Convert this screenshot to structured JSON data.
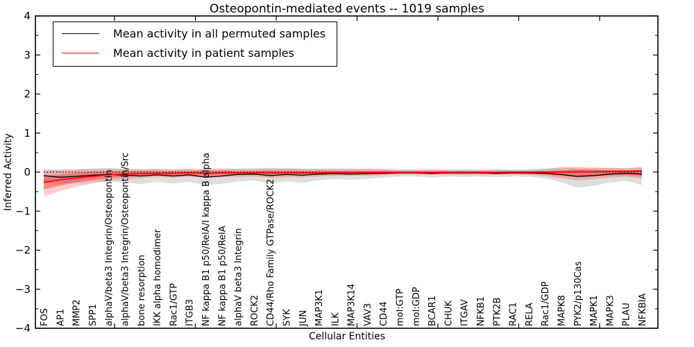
{
  "title": "Osteopontin-mediated events -- 1019 samples",
  "axes": {
    "xlabel": "Cellular Entities",
    "ylabel": "Inferred Activity",
    "y_tick_labels": [
      "4",
      "3",
      "2",
      "1",
      "0",
      "−1",
      "−2",
      "−3",
      "−4"
    ]
  },
  "legend": {
    "items": [
      {
        "label": "Mean activity in all permuted samples",
        "color": "#000000"
      },
      {
        "label": "Mean activity in patient samples",
        "color": "#ff0000"
      }
    ]
  },
  "chart_data": {
    "type": "line",
    "title": "Osteopontin-mediated events -- 1019 samples",
    "xlabel": "Cellular Entities",
    "ylabel": "Inferred Activity",
    "ylim": [
      -4,
      4
    ],
    "y_ticks": [
      4,
      3,
      2,
      1,
      0,
      -1,
      -2,
      -3,
      -4
    ],
    "grid": false,
    "legend_position": "upper left",
    "zero_line": 0,
    "categories": [
      "FOS",
      "AP1",
      "MMP2",
      "SPP1",
      "alphaV/beta3 Integrin/Osteopontin",
      "alphaV/beta3 Integrin/Osteopontin/Src",
      "bone resorption",
      "IKK alpha homodimer",
      "Rac1/GTP",
      "ITGB3",
      "NF kappa B1 p50/RelA/I kappa B alpha",
      "NF kappa B1 p50/RelA",
      "alphaV beta3 Integrin",
      "ROCK2",
      "CD44/Rho Family GTPase/ROCK2",
      "SYK",
      "JUN",
      "MAP3K1",
      "ILK",
      "MAP3K14",
      "VAV3",
      "CD44",
      "mol:GTP",
      "mol:GDP",
      "BCAR1",
      "CHUK",
      "ITGAV",
      "NFKB1",
      "PTK2B",
      "RAC1",
      "RELA",
      "Rac1/GDP",
      "MAPK8",
      "PYK2/p130Cas",
      "MAPK1",
      "MAPK3",
      "PLAU",
      "NFKBIA"
    ],
    "series": [
      {
        "name": "Mean activity in all permuted samples",
        "color": "#000000",
        "values": [
          -0.09,
          -0.13,
          -0.11,
          -0.08,
          -0.06,
          -0.08,
          -0.1,
          -0.07,
          -0.1,
          -0.07,
          -0.13,
          -0.1,
          -0.06,
          -0.05,
          -0.09,
          -0.06,
          -0.08,
          -0.05,
          -0.04,
          -0.05,
          -0.04,
          -0.03,
          -0.02,
          -0.02,
          -0.03,
          -0.02,
          -0.02,
          -0.02,
          -0.03,
          -0.02,
          -0.02,
          -0.03,
          -0.06,
          -0.11,
          -0.09,
          -0.05,
          -0.03,
          -0.05
        ],
        "band": {
          "color": "rgba(0,0,0,0.13)",
          "upper": [
            0.07,
            0.06,
            0.07,
            0.09,
            0.1,
            0.08,
            0.07,
            0.09,
            0.07,
            0.09,
            0.06,
            0.07,
            0.09,
            0.1,
            0.08,
            0.09,
            0.08,
            0.09,
            0.1,
            0.09,
            0.09,
            0.08,
            0.07,
            0.07,
            0.08,
            0.07,
            0.07,
            0.07,
            0.08,
            0.07,
            0.07,
            0.09,
            0.12,
            0.1,
            0.1,
            0.11,
            0.1,
            0.12
          ],
          "lower": [
            -0.26,
            -0.3,
            -0.29,
            -0.26,
            -0.24,
            -0.27,
            -0.3,
            -0.25,
            -0.29,
            -0.25,
            -0.33,
            -0.3,
            -0.24,
            -0.21,
            -0.29,
            -0.24,
            -0.27,
            -0.21,
            -0.18,
            -0.2,
            -0.17,
            -0.14,
            -0.11,
            -0.11,
            -0.14,
            -0.11,
            -0.12,
            -0.11,
            -0.13,
            -0.11,
            -0.12,
            -0.16,
            -0.26,
            -0.4,
            -0.35,
            -0.27,
            -0.22,
            -0.33
          ]
        }
      },
      {
        "name": "Mean activity in patient samples",
        "color": "#ff0000",
        "values": [
          -0.26,
          -0.2,
          -0.15,
          -0.11,
          -0.07,
          -0.05,
          -0.04,
          -0.03,
          -0.03,
          -0.02,
          -0.03,
          -0.02,
          -0.02,
          -0.02,
          -0.02,
          -0.02,
          -0.02,
          -0.02,
          -0.01,
          -0.01,
          -0.01,
          -0.01,
          -0.01,
          -0.01,
          -0.01,
          -0.01,
          -0.01,
          -0.01,
          -0.01,
          0.0,
          0.0,
          0.0,
          0.0,
          0.01,
          0.01,
          0.02,
          0.02,
          0.03
        ],
        "band": {
          "color": "rgba(255,0,0,0.20)",
          "upper": [
            0.04,
            0.06,
            0.07,
            0.08,
            0.09,
            0.08,
            0.07,
            0.08,
            0.07,
            0.08,
            0.08,
            0.1,
            0.08,
            0.08,
            0.11,
            0.1,
            0.09,
            0.08,
            0.07,
            0.08,
            0.08,
            0.07,
            0.05,
            0.05,
            0.06,
            0.05,
            0.05,
            0.05,
            0.06,
            0.05,
            0.05,
            0.08,
            0.12,
            0.14,
            0.12,
            0.11,
            0.1,
            0.13
          ],
          "lower": [
            -0.62,
            -0.49,
            -0.37,
            -0.29,
            -0.22,
            -0.18,
            -0.15,
            -0.13,
            -0.14,
            -0.12,
            -0.14,
            -0.13,
            -0.12,
            -0.11,
            -0.15,
            -0.13,
            -0.13,
            -0.11,
            -0.1,
            -0.09,
            -0.1,
            -0.08,
            -0.06,
            -0.06,
            -0.07,
            -0.06,
            -0.07,
            -0.06,
            -0.07,
            -0.06,
            -0.07,
            -0.1,
            -0.16,
            -0.21,
            -0.18,
            -0.14,
            -0.12,
            -0.16
          ]
        },
        "band_inner": {
          "color": "rgba(255,0,0,0.33)",
          "upper": [
            -0.1,
            -0.06,
            -0.02,
            0.01,
            0.02,
            0.02,
            0.02,
            0.02,
            0.02,
            0.03,
            0.03,
            0.04,
            0.03,
            0.03,
            0.04,
            0.04,
            0.03,
            0.03,
            0.03,
            0.03,
            0.03,
            0.03,
            0.02,
            0.02,
            0.02,
            0.02,
            0.02,
            0.02,
            0.02,
            0.02,
            0.02,
            0.03,
            0.05,
            0.07,
            0.06,
            0.05,
            0.05,
            0.06
          ],
          "lower": [
            -0.44,
            -0.35,
            -0.26,
            -0.2,
            -0.15,
            -0.12,
            -0.1,
            -0.08,
            -0.09,
            -0.08,
            -0.09,
            -0.08,
            -0.08,
            -0.07,
            -0.09,
            -0.08,
            -0.08,
            -0.07,
            -0.06,
            -0.06,
            -0.06,
            -0.05,
            -0.04,
            -0.04,
            -0.05,
            -0.04,
            -0.05,
            -0.04,
            -0.05,
            -0.04,
            -0.05,
            -0.06,
            -0.1,
            -0.13,
            -0.11,
            -0.09,
            -0.08,
            -0.1
          ]
        }
      }
    ]
  }
}
